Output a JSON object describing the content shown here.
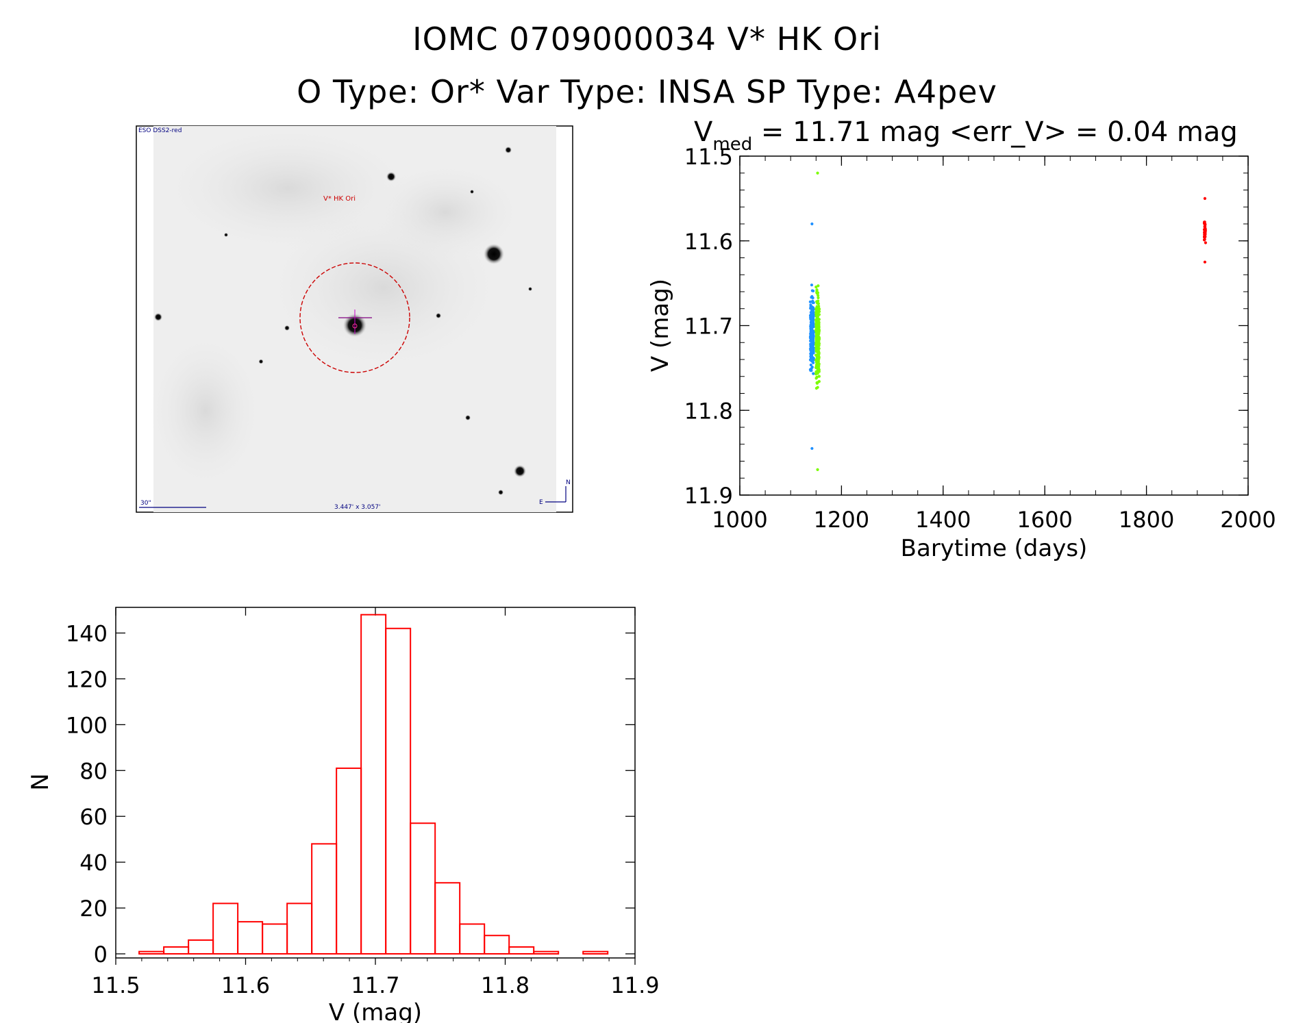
{
  "header": {
    "title_line1": "IOMC 0709000034    V* HK Ori",
    "title_line2": "O Type: Or*   Var Type: INSA   SP Type: A4pev"
  },
  "sky_image": {
    "survey_label": "ESO DSS2-red",
    "object_label": "V* HK Ori",
    "scale_label": "30\"",
    "fov_label": "3.447' x 3.057'",
    "compass_n": "N",
    "compass_e": "E"
  },
  "light_curve": {
    "stat_prefix": "V",
    "stat_sub": "med",
    "stat_rest": " = 11.71 mag <err_V> = 0.04 mag",
    "xlabel": "Barytime (days)",
    "ylabel": "V (mag)",
    "xlim": [
      1000,
      2000
    ],
    "ylim": [
      11.5,
      11.9
    ],
    "xticks": [
      "1000",
      "1200",
      "1400",
      "1600",
      "1800",
      "2000"
    ],
    "yticks": [
      "11.5",
      "11.6",
      "11.7",
      "11.8",
      "11.9"
    ],
    "colors": {
      "blue": "#1e90ff",
      "green": "#7cfc00",
      "red": "#ff0000"
    }
  },
  "histogram": {
    "xlabel": "V (mag)",
    "ylabel": "N",
    "xlim": [
      11.5,
      11.9
    ],
    "ylim": [
      0,
      150
    ],
    "xticks": [
      "11.5",
      "11.6",
      "11.7",
      "11.8",
      "11.9"
    ],
    "yticks": [
      "0",
      "20",
      "40",
      "60",
      "80",
      "100",
      "120",
      "140"
    ],
    "color": "#ff0000"
  },
  "chart_data": [
    {
      "type": "scatter",
      "title": "Vmed = 11.71 mag <err_V> = 0.04 mag",
      "xlabel": "Barytime (days)",
      "ylabel": "V (mag)",
      "xlim": [
        1000,
        2000
      ],
      "ylim": [
        11.9,
        11.5
      ],
      "series": [
        {
          "name": "blue",
          "x_center": 1142,
          "y_range": [
            11.58,
            11.845
          ],
          "median": 11.71
        },
        {
          "name": "green",
          "x_center": 1153,
          "y_range": [
            11.52,
            11.87
          ],
          "median": 11.71
        },
        {
          "name": "red",
          "x_center": 1915,
          "y_range": [
            11.55,
            11.625
          ],
          "median": 11.59
        }
      ]
    },
    {
      "type": "bar",
      "title": "",
      "xlabel": "V (mag)",
      "ylabel": "N",
      "xlim": [
        11.5,
        11.9
      ],
      "ylim": [
        0,
        150
      ],
      "bin_width": 0.019,
      "bin_starts": [
        11.518,
        11.537,
        11.556,
        11.575,
        11.594,
        11.613,
        11.632,
        11.651,
        11.67,
        11.689,
        11.708,
        11.727,
        11.746,
        11.765,
        11.784,
        11.803,
        11.822,
        11.841,
        11.86,
        11.879
      ],
      "values": [
        1,
        3,
        6,
        22,
        14,
        13,
        22,
        48,
        81,
        148,
        142,
        57,
        31,
        13,
        8,
        3,
        1,
        0,
        1,
        0
      ]
    }
  ]
}
